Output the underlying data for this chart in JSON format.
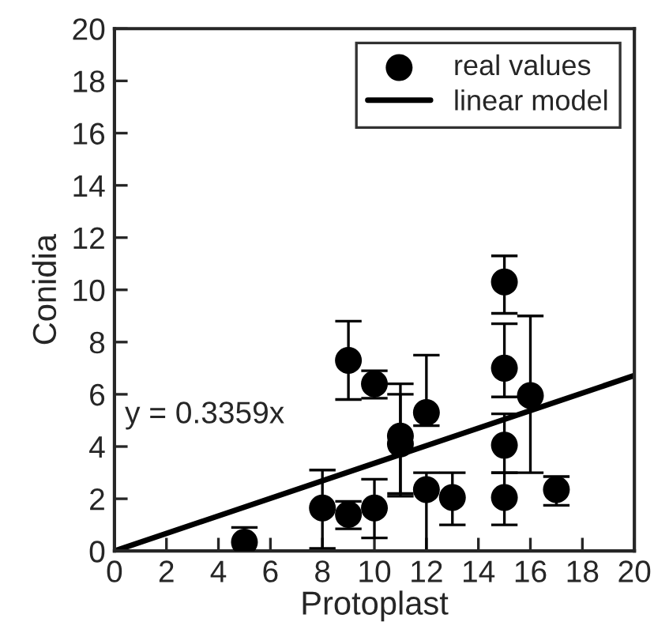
{
  "chart_data": {
    "type": "scatter",
    "xlabel": "Protoplast",
    "ylabel": "Conidia",
    "xlim": [
      0,
      20
    ],
    "ylim": [
      0,
      20
    ],
    "xticks": [
      0,
      2,
      4,
      6,
      8,
      10,
      12,
      14,
      16,
      18,
      20
    ],
    "yticks": [
      0,
      2,
      4,
      6,
      8,
      10,
      12,
      14,
      16,
      18,
      20
    ],
    "grid": false,
    "legend": "top right",
    "marker": "circle",
    "annotations": [
      "y = 0.3359x"
    ],
    "series": [
      {
        "name": "real values",
        "color": "#000000",
        "x": [
          5,
          8,
          9,
          9,
          10,
          10,
          11,
          11,
          12,
          12,
          13,
          15,
          15,
          15,
          15,
          16,
          17
        ],
        "values": [
          0.34,
          1.65,
          1.4,
          7.3,
          1.65,
          6.4,
          4.4,
          4.1,
          5.3,
          2.35,
          2.05,
          10.3,
          7.0,
          4.05,
          2.05,
          5.95,
          2.35
        ],
        "errors": [
          [
            0,
            0.9
          ],
          [
            0.1,
            3.1
          ],
          [
            0.85,
            1.9
          ],
          [
            5.8,
            8.8
          ],
          [
            0.5,
            2.75
          ],
          [
            5.85,
            6.9
          ],
          [
            2.1,
            6.4
          ],
          [
            2.2,
            6.0
          ],
          [
            4.8,
            7.5
          ],
          [
            0,
            3.0
          ],
          [
            1.0,
            3.0
          ],
          [
            9.1,
            11.3
          ],
          [
            5.9,
            8.7
          ],
          [
            3.0,
            5.25
          ],
          [
            1.0,
            3.0
          ],
          [
            3.0,
            9.0
          ],
          [
            1.75,
            2.85
          ]
        ]
      },
      {
        "name": "linear model",
        "type": "line",
        "color": "#000000",
        "marker": "none",
        "line_style": "solid",
        "x": [
          0,
          20
        ],
        "values": [
          0,
          6.72
        ]
      }
    ]
  }
}
